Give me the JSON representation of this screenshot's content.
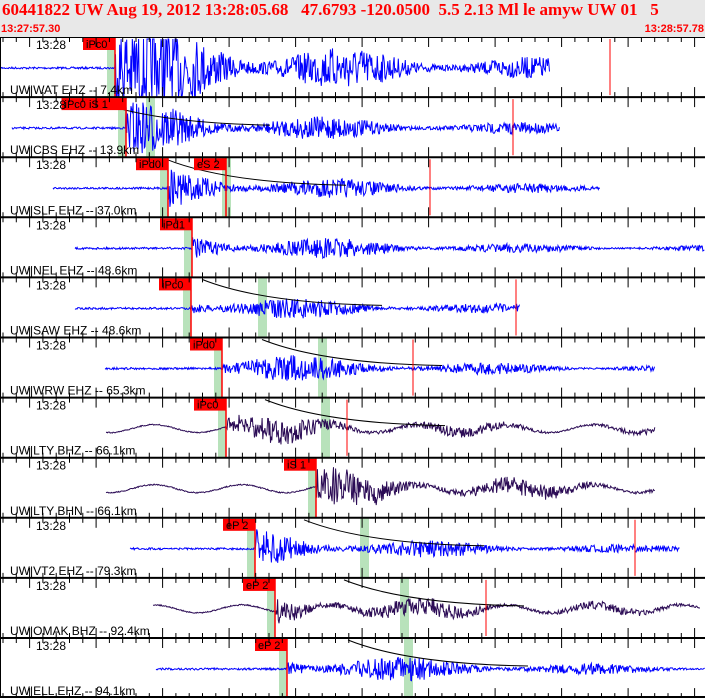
{
  "header": {
    "title": "60441822 UW Aug 19, 2012 13:28:05.68   47.6793 -120.0500  5.5 2.13 Ml le amyw UW 01   5",
    "start_time": "13:27:57.30",
    "end_time": "13:28:57.78"
  },
  "colors": {
    "short_period": "#0000ff",
    "broadband": "#2b0b55",
    "pick": "#ff0000",
    "window": "#b8e2bb",
    "header_text": "#ff0000"
  },
  "tick_label": "13:28",
  "channels": [
    {
      "label": "UW|WAT EHZ -- 7.4km",
      "type": "EHZ",
      "picks": [
        "iPc0"
      ]
    },
    {
      "label": "UW|CBS EHZ -- 13.9km",
      "type": "EHZ",
      "picks": [
        "iPc0 iS 1"
      ]
    },
    {
      "label": "UW|SLF EHZ -- 37.0km",
      "type": "EHZ",
      "picks": [
        "iPd0",
        "eS 2"
      ]
    },
    {
      "label": "UW|NEL EHZ -- 48.6km",
      "type": "EHZ",
      "picks": [
        "iPd1"
      ]
    },
    {
      "label": "UW|SAW EHZ -- 48.6km",
      "type": "EHZ",
      "picks": [
        "iPc0"
      ]
    },
    {
      "label": "UW|WRW EHZ -- 65.3km",
      "type": "EHZ",
      "picks": [
        "iPd0"
      ]
    },
    {
      "label": "UW|LTY BHZ -- 66.1km",
      "type": "BHZ",
      "picks": [
        "iPc0"
      ]
    },
    {
      "label": "UW|LTY BHN -- 66.1km",
      "type": "BHN",
      "picks": [
        "iS 1"
      ]
    },
    {
      "label": "UW|VT2 EHZ -- 79.3km",
      "type": "EHZ",
      "picks": [
        "eP 2"
      ]
    },
    {
      "label": "UW|OMAK BHZ -- 92.4km",
      "type": "BHZ",
      "picks": [
        "eP 2"
      ]
    },
    {
      "label": "UW|ELL EHZ -- 94.1km",
      "type": "EHZ",
      "picks": [
        "eP 2"
      ]
    }
  ]
}
